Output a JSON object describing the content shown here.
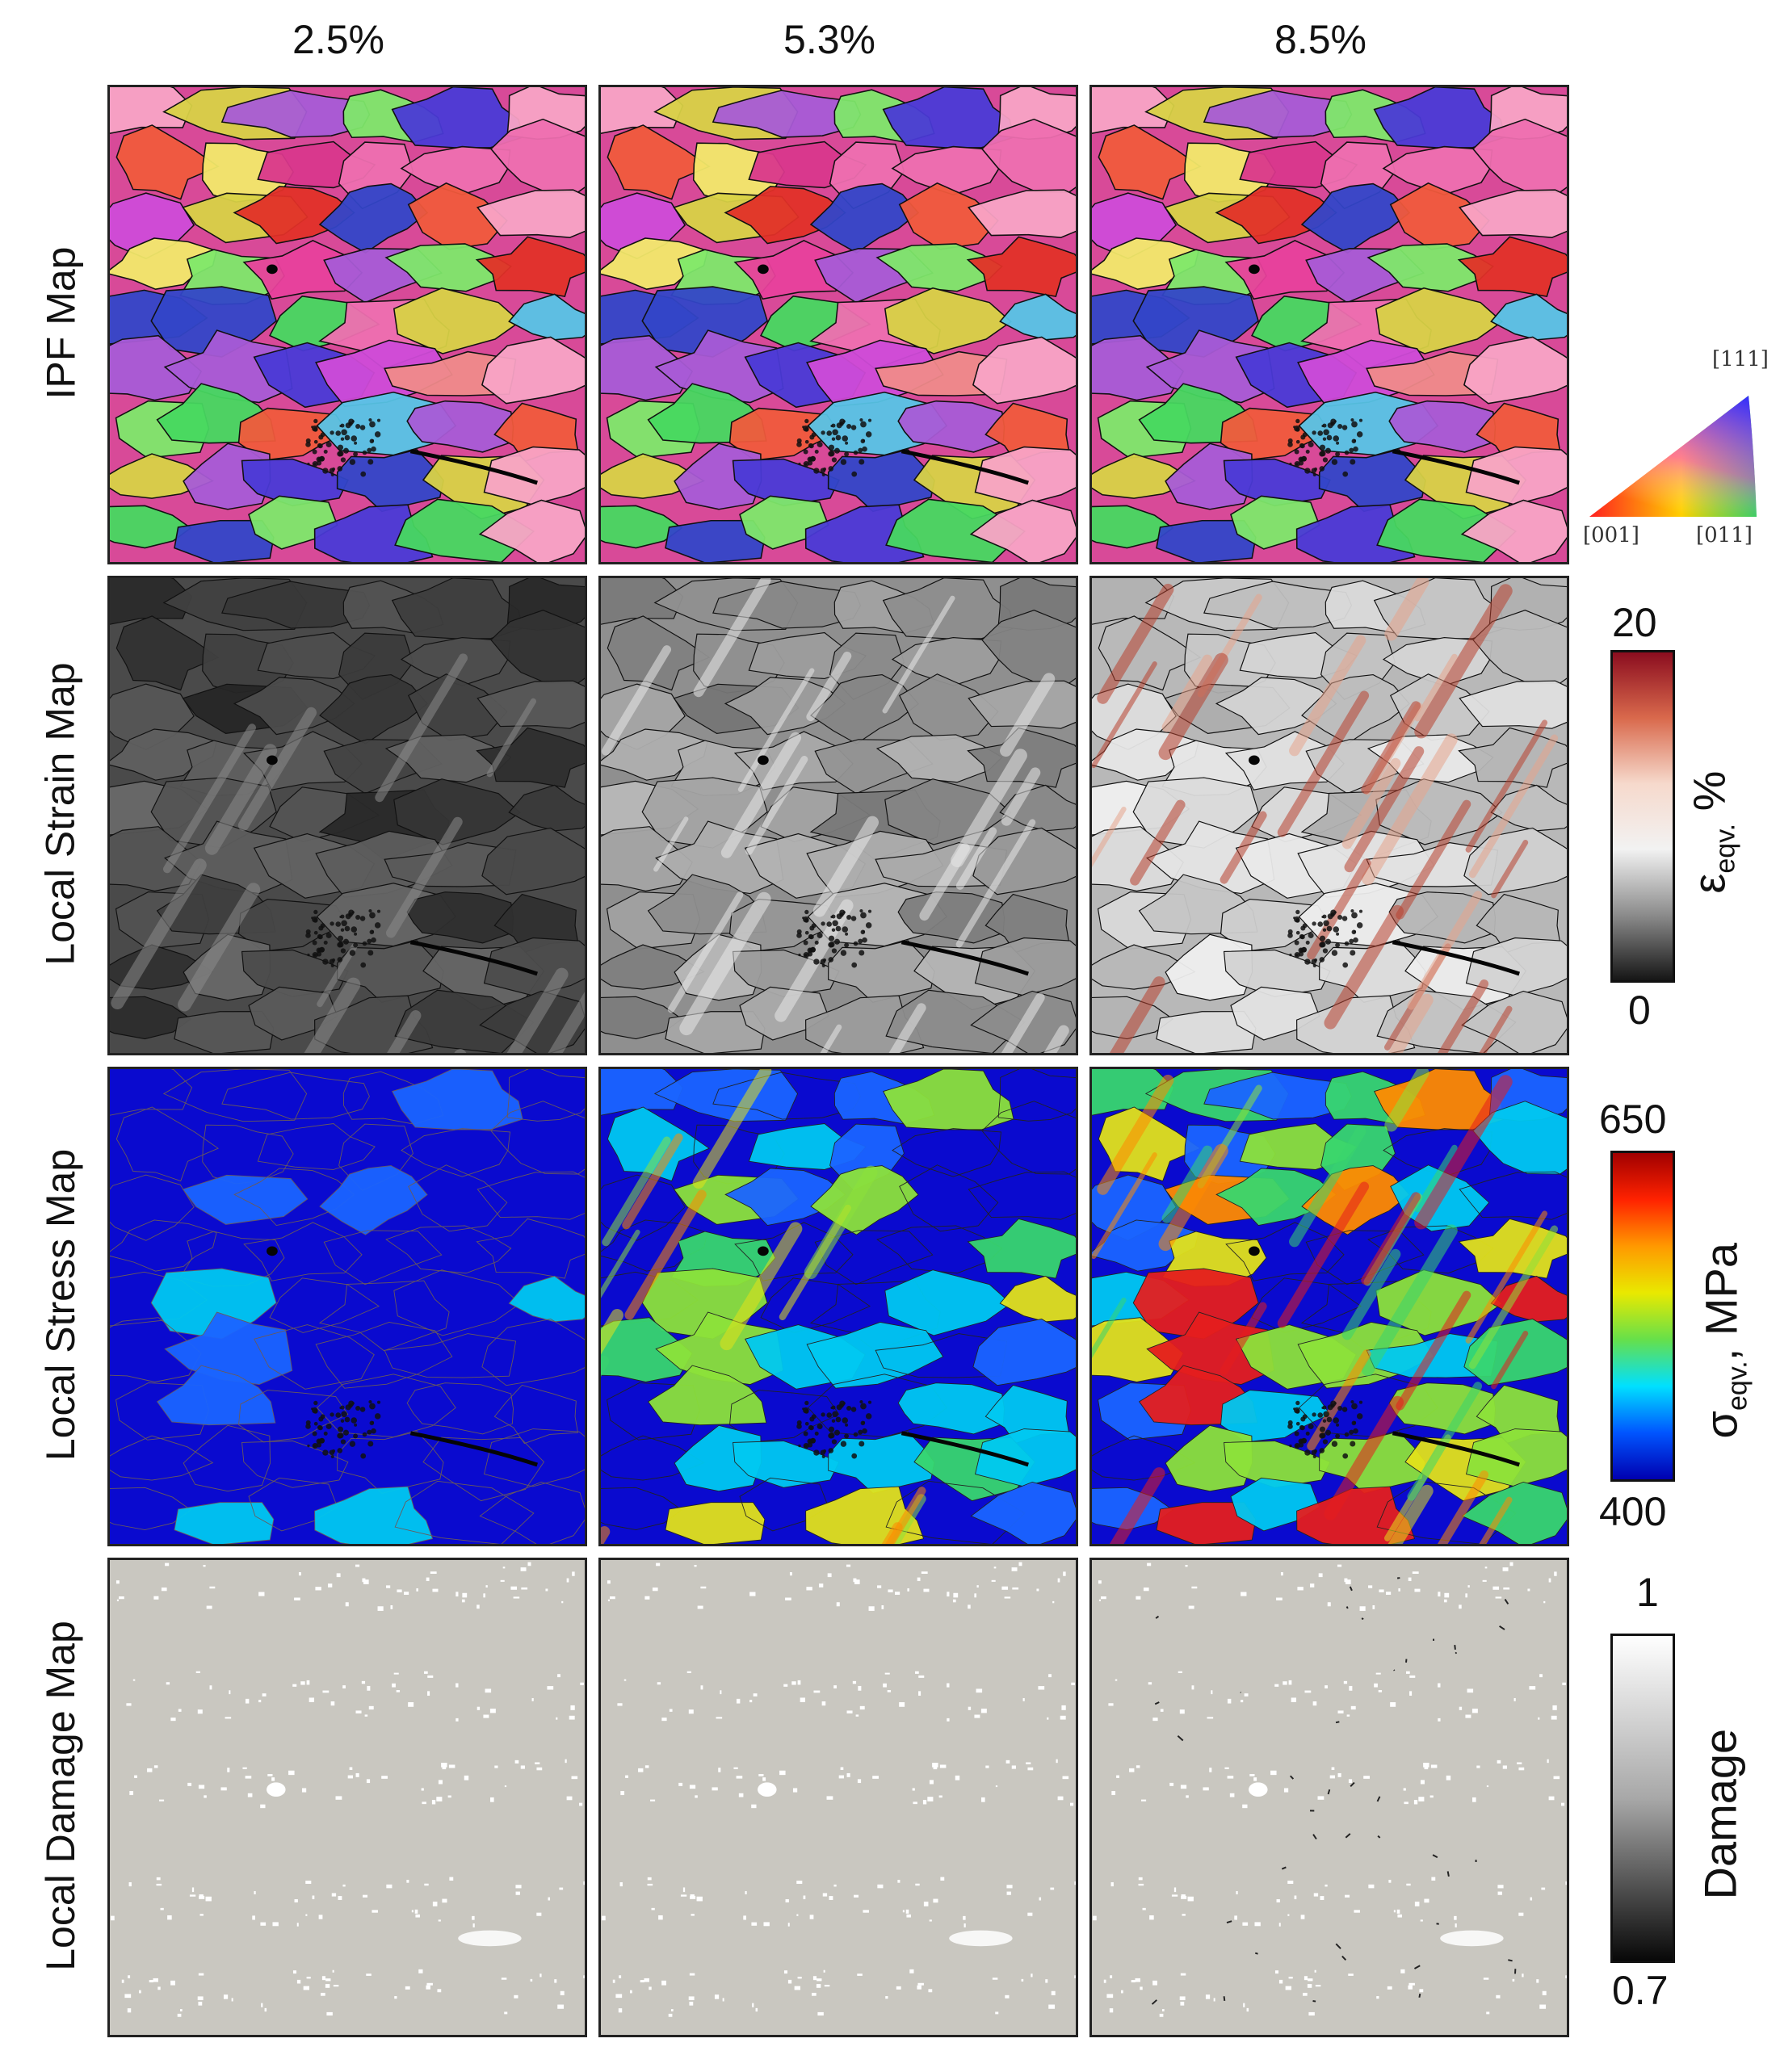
{
  "columns": [
    "2.5%",
    "5.3%",
    "8.5%"
  ],
  "rows": [
    {
      "label": "IPF Map",
      "kind": "ipf"
    },
    {
      "label": "Local Strain Map",
      "kind": "strain"
    },
    {
      "label": "Local Stress Map",
      "kind": "stress"
    },
    {
      "label": "Local Damage Map",
      "kind": "damage"
    }
  ],
  "ipf_legend": {
    "top": "[111]",
    "left": "[001]",
    "right": "[011]"
  },
  "strain_bar": {
    "max": "20",
    "min": "0",
    "title_symbol": "ε",
    "title_sub": "eqv.",
    "title_unit": " %",
    "colors": [
      "#8b0d1f",
      "#d9694c",
      "#f6d9cc",
      "#f2f2f2",
      "#8c8c8c",
      "#161616"
    ]
  },
  "stress_bar": {
    "max": "650",
    "min": "400",
    "title_symbol": "σ",
    "title_sub": "eqv.",
    "title_unit": ", MPa",
    "colors": [
      "#a10000",
      "#ff2200",
      "#ff9900",
      "#e9e900",
      "#66e04a",
      "#00e0ff",
      "#0055ff",
      "#0000b0"
    ]
  },
  "damage_bar": {
    "max": "1",
    "min": "0.7",
    "title": "Damage",
    "colors": [
      "#ffffff",
      "#a8a8a8",
      "#080808"
    ]
  },
  "palettes": {
    "ipf": [
      "#e8409c",
      "#ee6fb0",
      "#d9378c",
      "#4a3ad6",
      "#3346c8",
      "#e23028",
      "#f05a3c",
      "#7ee86a",
      "#47d860",
      "#f2e96a",
      "#d8d246",
      "#57c4e6",
      "#a85bd6",
      "#ef8a8a",
      "#f8a3c5",
      "#cf4bd8"
    ],
    "strain_base": [
      "#4a4a4a",
      "#8f8f8f",
      "#b8b8b8"
    ],
    "stress_base": "#0a0acf",
    "stress_hot": [
      "#1a64ff",
      "#00c8f0",
      "#38d66e",
      "#8ce23a",
      "#e2e21a",
      "#ff8a00",
      "#e51e1e"
    ],
    "damage_base": "#c9c7c0"
  }
}
